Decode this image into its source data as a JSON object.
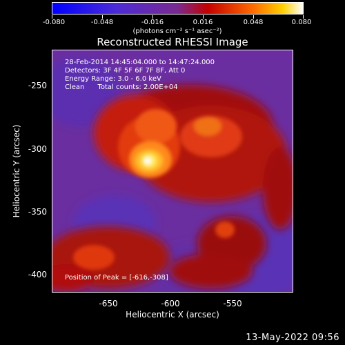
{
  "colorbar": {
    "tick_labels": [
      "-0.080",
      "-0.048",
      "-0.016",
      "0.016",
      "0.048",
      "0.080"
    ],
    "unit": "(photons cm⁻² s⁻¹ asec⁻²)"
  },
  "title": "Reconstructed RHESSI Image",
  "info": {
    "line1": "28-Feb-2014 14:45:04.000 to 14:47:24.000",
    "line2": "Detectors: 3F 4F 5F 6F 7F 8F, Att 0",
    "line3": "Energy Range: 3.0 - 6.0 keV",
    "line4": "Clean      Total counts: 2.00E+04"
  },
  "peak_text": "Position of Peak = [-616,-308]",
  "axes": {
    "x_ticks": [
      "-650",
      "-600",
      "-550"
    ],
    "y_ticks": [
      "-250",
      "-300",
      "-350",
      "-400"
    ],
    "xlabel": "Heliocentric X (arcsec)",
    "ylabel": "Heliocentric Y (arcsec)"
  },
  "timestamp": "13-May-2022 09:56",
  "colors": {
    "background": "#000000",
    "low": "#0000ff",
    "mid_negative": "#7030a0",
    "high": "#ff0000",
    "peak": "#ffffff"
  }
}
